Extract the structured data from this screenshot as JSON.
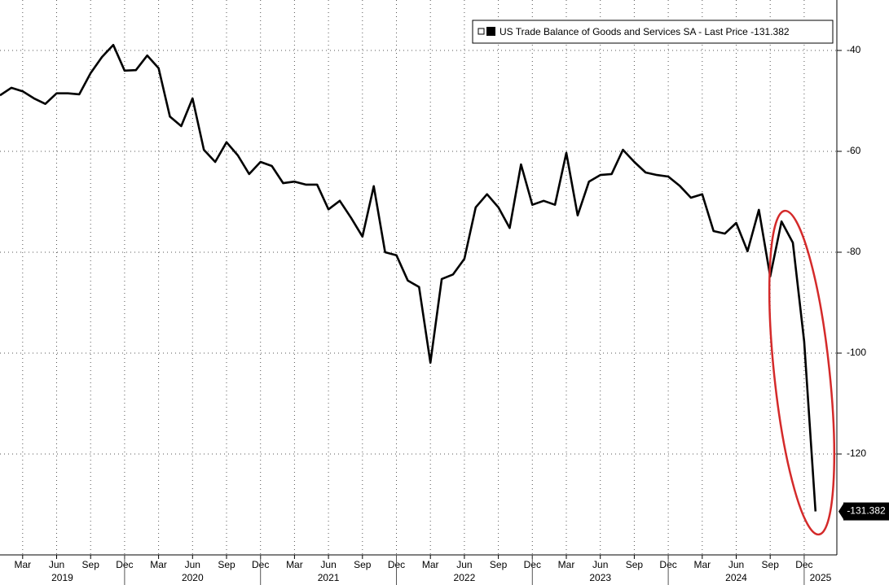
{
  "chart_data": {
    "type": "line",
    "x": [
      "2019-01",
      "2019-02",
      "2019-03",
      "2019-04",
      "2019-05",
      "2019-06",
      "2019-07",
      "2019-08",
      "2019-09",
      "2019-10",
      "2019-11",
      "2019-12",
      "2020-01",
      "2020-02",
      "2020-03",
      "2020-04",
      "2020-05",
      "2020-06",
      "2020-07",
      "2020-08",
      "2020-09",
      "2020-10",
      "2020-11",
      "2020-12",
      "2021-01",
      "2021-02",
      "2021-03",
      "2021-04",
      "2021-05",
      "2021-06",
      "2021-07",
      "2021-08",
      "2021-09",
      "2021-10",
      "2021-11",
      "2021-12",
      "2022-01",
      "2022-02",
      "2022-03",
      "2022-04",
      "2022-05",
      "2022-06",
      "2022-07",
      "2022-08",
      "2022-09",
      "2022-10",
      "2022-11",
      "2022-12",
      "2023-01",
      "2023-02",
      "2023-03",
      "2023-04",
      "2023-05",
      "2023-06",
      "2023-07",
      "2023-08",
      "2023-09",
      "2023-10",
      "2023-11",
      "2023-12",
      "2024-01",
      "2024-02",
      "2024-03",
      "2024-04",
      "2024-05",
      "2024-06",
      "2024-07",
      "2024-08",
      "2024-09",
      "2024-10",
      "2024-11",
      "2024-12",
      "2025-01"
    ],
    "series": [
      {
        "name": "US Trade Balance of Goods and Services SA - Last Price",
        "color": "#000000",
        "values": [
          -48.9,
          -47.4,
          -48.1,
          -49.5,
          -50.6,
          -48.5,
          -48.5,
          -48.7,
          -44.5,
          -41.3,
          -38.9,
          -44.0,
          -43.9,
          -41.0,
          -43.5,
          -53.1,
          -55.0,
          -49.5,
          -59.7,
          -62.1,
          -58.2,
          -60.8,
          -64.5,
          -62.1,
          -62.9,
          -66.3,
          -66.0,
          -66.6,
          -66.6,
          -71.5,
          -69.8,
          -73.2,
          -76.9,
          -66.9,
          -80.0,
          -80.6,
          -85.6,
          -86.9,
          -101.9,
          -85.3,
          -84.4,
          -81.3,
          -71.1,
          -68.5,
          -71.1,
          -75.2,
          -62.6,
          -70.6,
          -69.8,
          -70.6,
          -60.3,
          -72.7,
          -66.0,
          -64.7,
          -64.5,
          -59.7,
          -62.1,
          -64.2,
          -64.7,
          -65.0,
          -66.8,
          -69.2,
          -68.5,
          -75.8,
          -76.3,
          -74.2,
          -79.8,
          -71.6,
          -84.8,
          -73.9,
          -78.1,
          -97.7,
          -131.382
        ]
      }
    ],
    "ylim": [
      -140,
      -30
    ],
    "yticks": [
      -40,
      -60,
      -80,
      -100,
      -120
    ],
    "xticks": [
      {
        "value": "2019-03",
        "label": "Mar"
      },
      {
        "value": "2019-06",
        "label": "Jun"
      },
      {
        "value": "2019-09",
        "label": "Sep"
      },
      {
        "value": "2019-12",
        "label": "Dec"
      },
      {
        "value": "2020-03",
        "label": "Mar"
      },
      {
        "value": "2020-06",
        "label": "Jun"
      },
      {
        "value": "2020-09",
        "label": "Sep"
      },
      {
        "value": "2020-12",
        "label": "Dec"
      },
      {
        "value": "2021-03",
        "label": "Mar"
      },
      {
        "value": "2021-06",
        "label": "Jun"
      },
      {
        "value": "2021-09",
        "label": "Sep"
      },
      {
        "value": "2021-12",
        "label": "Dec"
      },
      {
        "value": "2022-03",
        "label": "Mar"
      },
      {
        "value": "2022-06",
        "label": "Jun"
      },
      {
        "value": "2022-09",
        "label": "Sep"
      },
      {
        "value": "2022-12",
        "label": "Dec"
      },
      {
        "value": "2023-03",
        "label": "Mar"
      },
      {
        "value": "2023-06",
        "label": "Jun"
      },
      {
        "value": "2023-09",
        "label": "Sep"
      },
      {
        "value": "2023-12",
        "label": "Dec"
      },
      {
        "value": "2024-03",
        "label": "Mar"
      },
      {
        "value": "2024-06",
        "label": "Jun"
      },
      {
        "value": "2024-09",
        "label": "Sep"
      },
      {
        "value": "2024-12",
        "label": "Dec"
      }
    ],
    "year_labels": [
      "2019",
      "2020",
      "2021",
      "2022",
      "2023",
      "2024",
      "2025"
    ],
    "grid": true
  }
}
